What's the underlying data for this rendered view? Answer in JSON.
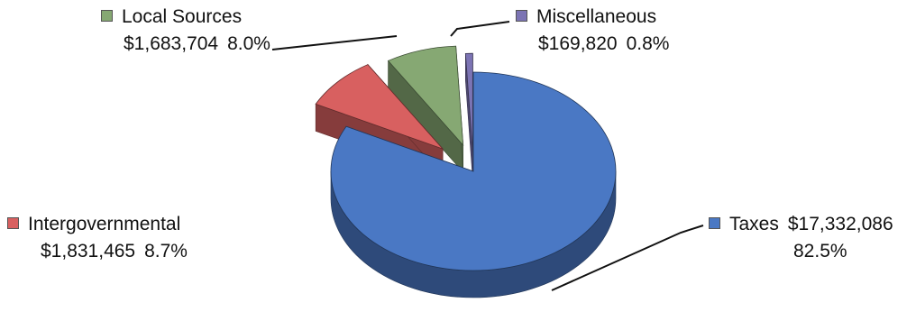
{
  "chart_data": {
    "type": "pie",
    "style": "3d exploded",
    "slices": [
      {
        "name": "Taxes",
        "amount": "$17,332,086",
        "value": 17332086,
        "percent": "82.5%",
        "color": "#4a78c4"
      },
      {
        "name": "Intergovernmental",
        "amount": "$1,831,465",
        "value": 1831465,
        "percent": "8.7%",
        "color": "#d86060"
      },
      {
        "name": "Local Sources",
        "amount": "$1,683,704",
        "value": 1683704,
        "percent": "8.0%",
        "color": "#86a873"
      },
      {
        "name": "Miscellaneous",
        "amount": "$169,820",
        "value": 169820,
        "percent": "0.8%",
        "color": "#7c74b4"
      }
    ]
  }
}
